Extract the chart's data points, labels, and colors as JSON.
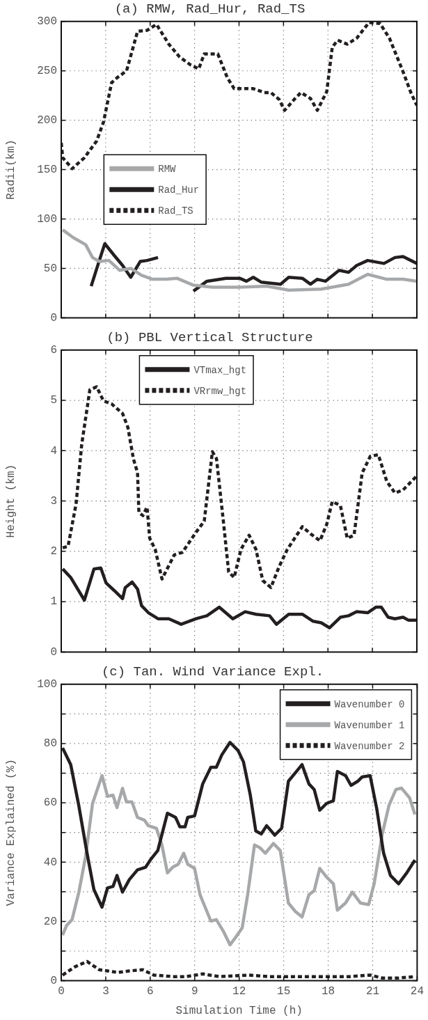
{
  "chart_data": [
    {
      "type": "line",
      "title": "(a) RMW, Rad_Hur, Rad_TS",
      "ylabel": "Radii(km)",
      "xlim": [
        0,
        24
      ],
      "xticks": [
        0,
        3,
        6,
        9,
        12,
        15,
        18,
        21,
        24
      ],
      "ylim": [
        0,
        300
      ],
      "yticks": [
        0,
        50,
        100,
        150,
        200,
        250,
        300
      ],
      "grid": true,
      "tick_labels": "y",
      "legend": "center left",
      "series": [
        {
          "name": "RMW",
          "color": "#a6a8aa",
          "line_style": "solid",
          "x": [
            0.1,
            0.83,
            1.65,
            2.11,
            2.57,
            3.22,
            3.95,
            4.69,
            5.42,
            6.16,
            7.08,
            7.81,
            8.92,
            10.2,
            12.04,
            13.88,
            15.35,
            17.55,
            19.39,
            20.68,
            21.97,
            23.07,
            24
          ],
          "values": [
            89,
            81,
            74,
            61,
            57,
            58,
            48,
            50,
            43,
            39,
            39,
            40,
            33,
            31,
            31,
            32,
            28,
            29,
            34,
            44,
            39,
            39,
            37
          ]
        },
        {
          "name": "Rad_Hur",
          "color": "#231f20",
          "line_style": "solid",
          "x": [
            2.02,
            2.57,
            2.94,
            3.58,
            4.14,
            4.69,
            5.33,
            5.79,
            6.53,
            7.5,
            8.92,
            9.83,
            11.12,
            12.04,
            12.5,
            12.96,
            13.51,
            14.8,
            15.35,
            16.27,
            16.82,
            17.28,
            17.83,
            18.75,
            19.39,
            19.94,
            20.68,
            21.78,
            22.52,
            23.07,
            24
          ],
          "values": [
            32,
            58,
            75,
            63,
            53,
            41,
            57,
            58,
            61,
            null,
            27,
            37,
            40,
            40,
            37,
            41,
            36,
            34,
            41,
            40,
            34,
            39,
            37,
            48,
            46,
            53,
            58,
            55,
            61,
            62,
            55
          ]
        },
        {
          "name": "Rad_TS",
          "color": "#231f20",
          "line_style": "dashed",
          "x": [
            0,
            0.1,
            0.74,
            1.56,
            2.39,
            2.85,
            3.4,
            3.77,
            4.41,
            5.15,
            5.79,
            6.43,
            7.26,
            7.99,
            8.73,
            9.28,
            9.65,
            10.57,
            11.21,
            11.67,
            12.96,
            13.69,
            14.15,
            14.71,
            15.07,
            15.72,
            16.18,
            16.82,
            17.28,
            17.92,
            18.29,
            18.66,
            19.3,
            19.94,
            20.77,
            21.51,
            22.15,
            23.07,
            23.62,
            24
          ],
          "values": [
            177,
            162,
            151,
            162,
            179,
            198,
            238,
            243,
            250,
            290,
            291,
            297,
            277,
            264,
            256,
            252,
            267,
            267,
            243,
            232,
            232,
            228,
            228,
            221,
            210,
            221,
            228,
            222,
            210,
            229,
            274,
            281,
            277,
            283,
            299,
            298,
            283,
            249,
            227,
            215
          ]
        }
      ]
    },
    {
      "type": "line",
      "title": "(b) PBL Vertical Structure",
      "ylabel": "Height (km)",
      "xlim": [
        0,
        24
      ],
      "xticks": [
        0,
        3,
        6,
        9,
        12,
        15,
        18,
        21,
        24
      ],
      "ylim": [
        0,
        6
      ],
      "yticks": [
        0,
        1,
        2,
        3,
        4,
        5,
        6
      ],
      "grid": true,
      "tick_labels": "y",
      "legend": "top",
      "series": [
        {
          "name": "VTmax_hgt",
          "color": "#231f20",
          "line_style": "solid",
          "x": [
            0.1,
            0.64,
            1.56,
            2.21,
            2.67,
            3.03,
            3.58,
            4.14,
            4.32,
            4.78,
            5.15,
            5.42,
            5.88,
            6.53,
            7.26,
            8.09,
            9.1,
            9.83,
            10.66,
            11.58,
            12.41,
            13.14,
            14.06,
            14.52,
            15.35,
            16.27,
            17,
            17.55,
            18.11,
            18.84,
            19.39,
            19.94,
            20.68,
            21.23,
            21.6,
            22.06,
            22.52,
            23.07,
            23.44,
            24
          ],
          "values": [
            1.65,
            1.48,
            1.03,
            1.65,
            1.67,
            1.37,
            1.22,
            1.06,
            1.28,
            1.39,
            1.25,
            0.92,
            0.78,
            0.66,
            0.66,
            0.55,
            0.66,
            0.72,
            0.89,
            0.66,
            0.8,
            0.75,
            0.72,
            0.55,
            0.75,
            0.75,
            0.61,
            0.58,
            0.48,
            0.69,
            0.72,
            0.8,
            0.78,
            0.89,
            0.89,
            0.69,
            0.66,
            0.69,
            0.63,
            0.63
          ]
        },
        {
          "name": "VRrmw_hgt",
          "color": "#231f20",
          "line_style": "dashed",
          "x": [
            0.1,
            0.46,
            1,
            1.38,
            1.93,
            2.39,
            2.85,
            3.4,
            4.14,
            4.5,
            4.87,
            5.15,
            5.24,
            5.51,
            5.79,
            5.97,
            6.34,
            6.8,
            7.63,
            8.18,
            9.1,
            9.65,
            10.2,
            10.48,
            10.94,
            11.3,
            11.67,
            12.13,
            12.68,
            13.14,
            13.6,
            14.15,
            14.71,
            15.26,
            16.27,
            16.82,
            17.46,
            17.92,
            18.29,
            18.84,
            19.3,
            19.76,
            20.31,
            20.86,
            21.4,
            21.97,
            22.52,
            23.07,
            24
          ],
          "values": [
            2.07,
            2.1,
            2.94,
            4.12,
            5.21,
            5.27,
            4.99,
            4.93,
            4.74,
            4.46,
            3.84,
            3.56,
            2.77,
            2.71,
            2.88,
            2.26,
            2.04,
            1.45,
            1.93,
            1.98,
            2.38,
            2.6,
            3.98,
            3.84,
            2.6,
            1.59,
            1.48,
            2.04,
            2.32,
            2.04,
            1.42,
            1.28,
            1.7,
            2.04,
            2.49,
            2.35,
            2.21,
            2.54,
            2.99,
            2.91,
            2.26,
            2.32,
            3.56,
            3.89,
            3.92,
            3.39,
            3.16,
            3.22,
            3.5
          ]
        }
      ]
    },
    {
      "type": "line",
      "title": "(c) Tan. Wind Variance Expl.",
      "xlabel": "Simulation Time (h)",
      "ylabel": "Variance Explained (%)",
      "xlim": [
        0,
        24
      ],
      "xticks": [
        0,
        3,
        6,
        9,
        12,
        15,
        18,
        21,
        24
      ],
      "ylim": [
        0,
        100
      ],
      "yticks": [
        0,
        {
          "value": 10,
          "label": null
        },
        20,
        {
          "value": 30,
          "label": null
        },
        40,
        {
          "value": 50,
          "label": null
        },
        60,
        {
          "value": 70,
          "label": null
        },
        80,
        {
          "value": 90,
          "label": null
        },
        100
      ],
      "grid": true,
      "legend": "top right",
      "series": [
        {
          "name": "Wavenumber 0",
          "color": "#231f20",
          "line_style": "solid",
          "x": [
            0.09,
            0.28,
            0.64,
            1.19,
            1.74,
            2.2,
            2.75,
            3.12,
            3.49,
            3.76,
            4.13,
            4.59,
            5.14,
            5.69,
            6.06,
            6.51,
            7.16,
            7.71,
            8.0,
            8.35,
            8.53,
            8.99,
            9.54,
            10.09,
            10.46,
            10.83,
            11.38,
            11.93,
            12.29,
            12.75,
            13.12,
            13.49,
            13.85,
            14.4,
            14.86,
            15.32,
            15.78,
            16.24,
            16.7,
            17.06,
            17.43,
            17.89,
            18.35,
            18.62,
            19.17,
            19.54,
            20,
            20.28,
            20.83,
            21.28,
            21.74,
            22.2,
            22.75,
            23.3,
            23.85
          ],
          "values": [
            78.5,
            76.6,
            72.9,
            58.9,
            43,
            30.8,
            24.8,
            31.3,
            31.8,
            35.5,
            29.9,
            34.1,
            37.4,
            38.3,
            41.1,
            43.9,
            56.5,
            55.1,
            51.9,
            51.9,
            55.1,
            55.6,
            66.4,
            72,
            72,
            76.2,
            80.4,
            77.6,
            73.8,
            62.6,
            50.5,
            49.5,
            52.3,
            49.1,
            51.4,
            67.3,
            70.1,
            72.9,
            66.4,
            64.5,
            57.5,
            59.8,
            60.7,
            70.6,
            69.2,
            65.9,
            67.3,
            68.7,
            69.2,
            57.9,
            43,
            35.5,
            32.7,
            36.4,
            40.7
          ]
        },
        {
          "name": "Wavenumber 1",
          "color": "#a6a8aa",
          "line_style": "solid",
          "x": [
            0.09,
            0.37,
            0.73,
            1.19,
            1.65,
            2.11,
            2.75,
            3.12,
            3.49,
            3.76,
            4.13,
            4.4,
            4.77,
            5.14,
            5.6,
            5.87,
            6.42,
            6.79,
            7.16,
            7.52,
            7.89,
            8.26,
            8.53,
            8.99,
            9.36,
            10.09,
            10.46,
            10.92,
            11.38,
            11.74,
            12.2,
            12.57,
            13.03,
            13.39,
            13.76,
            14.31,
            14.77,
            15.32,
            15.78,
            16.24,
            16.7,
            17.06,
            17.43,
            17.89,
            18.35,
            18.62,
            19.17,
            19.63,
            20.18,
            20.73,
            21.1,
            21.65,
            22.11,
            22.57,
            22.94,
            23.49,
            23.85
          ],
          "values": [
            15.4,
            18.7,
            20.6,
            29.9,
            42.1,
            59.8,
            69.2,
            62.2,
            62.6,
            58.4,
            64.9,
            60.3,
            60.3,
            55.1,
            54.2,
            52.3,
            51.4,
            45.8,
            36.4,
            38.3,
            39.3,
            43,
            39.3,
            37.9,
            29,
            20.1,
            20.6,
            16.8,
            12.1,
            14.5,
            17.8,
            29,
            45.8,
            44.9,
            43,
            46.3,
            43.9,
            26.2,
            23.4,
            21.5,
            29,
            30.4,
            37.9,
            35,
            32.7,
            23.8,
            26.2,
            29.9,
            26.2,
            25.7,
            32.7,
            49.5,
            59.3,
            64.5,
            65,
            61.7,
            56.1
          ]
        },
        {
          "name": "Wavenumber 2",
          "color": "#231f20",
          "line_style": "dashed",
          "x": [
            0.09,
            0.92,
            1.74,
            2.57,
            3.12,
            3.85,
            4.59,
            5.5,
            6.24,
            7.52,
            8.44,
            9.54,
            10.64,
            12.66,
            13.94,
            15.78,
            17.61,
            19.45,
            20.83,
            21.65,
            22.75,
            23.85
          ],
          "values": [
            1.9,
            4.7,
            6.5,
            3.7,
            3.3,
            2.8,
            3.3,
            3.7,
            1.9,
            1.4,
            1.4,
            2.3,
            1.4,
            1.9,
            1.4,
            1.4,
            1.4,
            1.4,
            1.9,
            0.9,
            0.9,
            1.4
          ]
        }
      ]
    }
  ]
}
